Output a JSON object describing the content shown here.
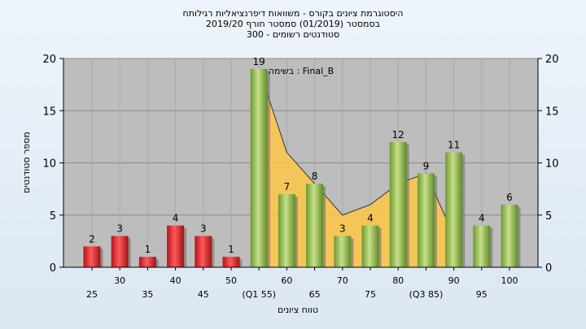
{
  "header": {
    "title": "היסטוגרמת ציונים בקורס - משוואות דיפרנציאליות רגילותח",
    "semester": "בסמסטר  (01/2019)  סמסטר חורף 2019/20",
    "students": "סטודנטים רשומים - 300"
  },
  "chart_data": {
    "type": "bar",
    "title": "היסטוגרמת ציונים בקורס - משוואות דיפרנציאליות רגילותח",
    "xlabel": "טווח ציונים",
    "ylabel": "מספר סטודנטים",
    "ylim": [
      0,
      20
    ],
    "yticks": [
      0,
      5,
      10,
      15,
      20
    ],
    "grid": true,
    "annotation": "בשימה : Final_B",
    "categories": [
      "25",
      "30",
      "35",
      "40",
      "45",
      "50",
      "(Q1 55)",
      "60",
      "65",
      "70",
      "75",
      "80",
      "(Q3 85)",
      "90",
      "95",
      "100"
    ],
    "values": [
      2,
      3,
      1,
      4,
      3,
      1,
      19,
      7,
      8,
      3,
      4,
      12,
      9,
      11,
      4,
      6
    ],
    "failing_color": "#d9262b",
    "passing_color": "#8bbb45",
    "area_color": "#f9c74f",
    "area_values": [
      19,
      11,
      8,
      5,
      6,
      8,
      9,
      3
    ],
    "area_start_category": "(Q1 55)",
    "area_end_category": "90",
    "label_row": [
      "lower",
      "upper",
      "lower",
      "upper",
      "lower",
      "upper",
      "lower",
      "upper",
      "lower",
      "upper",
      "lower",
      "upper",
      "lower",
      "upper",
      "lower",
      "upper"
    ]
  }
}
